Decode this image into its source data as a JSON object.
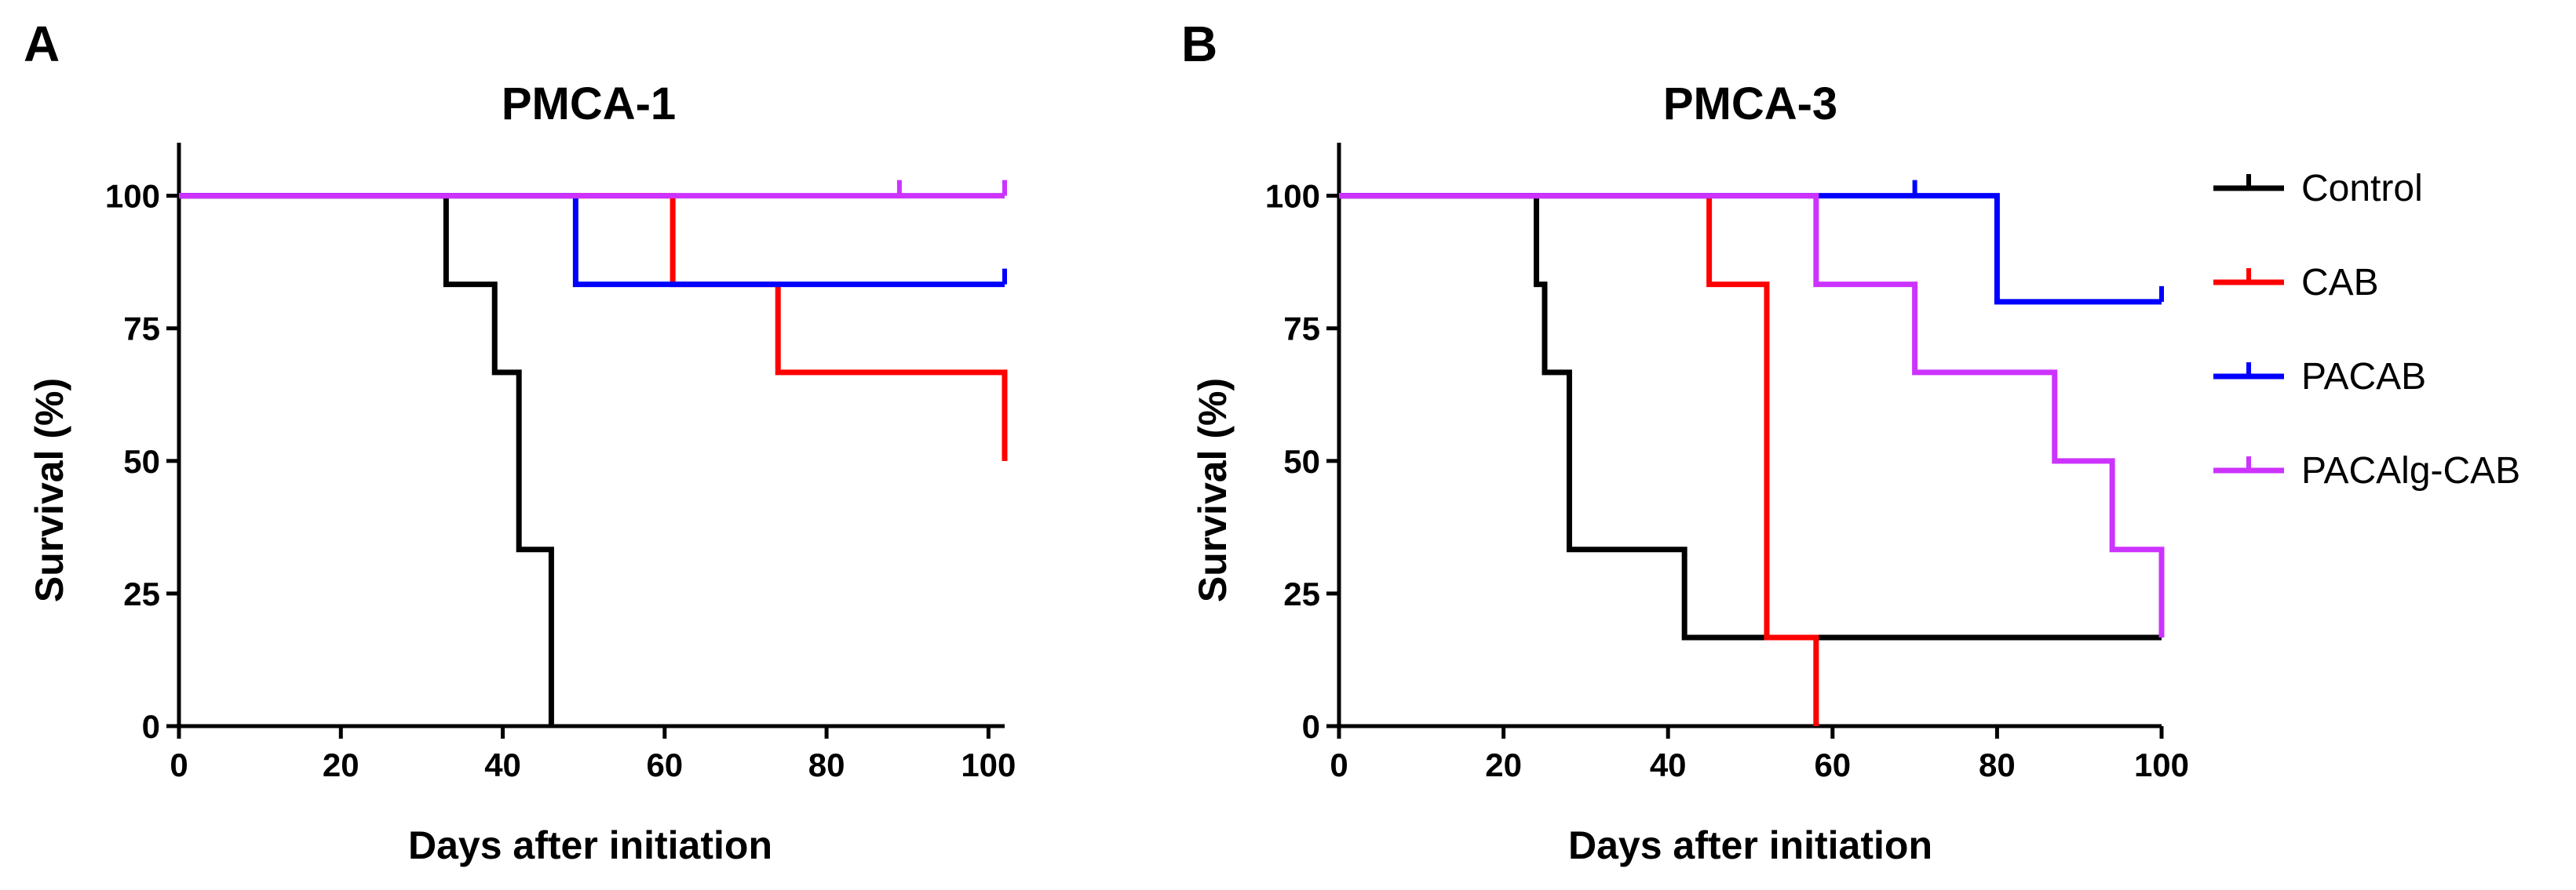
{
  "chart_data": [
    {
      "type": "line",
      "subtype": "kaplan-meier",
      "panel_label": "A",
      "title": "PMCA-1",
      "xlabel": "Days after initiation",
      "ylabel": "Survival (%)",
      "xlim": [
        0,
        102
      ],
      "ylim": [
        0,
        110
      ],
      "xticks": [
        0,
        20,
        40,
        60,
        80,
        100
      ],
      "yticks": [
        0,
        25,
        50,
        75,
        100
      ],
      "series": [
        {
          "name": "Control",
          "color": "#000000",
          "x": [
            0,
            33,
            39,
            42,
            46
          ],
          "y": [
            100,
            83.3,
            66.7,
            33.3,
            0
          ],
          "end_x": 46,
          "censored": []
        },
        {
          "name": "CAB",
          "color": "#ff0000",
          "x": [
            0,
            61,
            74,
            102
          ],
          "y": [
            100,
            83.3,
            66.7,
            50
          ],
          "end_x": 102,
          "censored": []
        },
        {
          "name": "PACAB",
          "color": "#0000ff",
          "x": [
            0,
            49
          ],
          "y": [
            100,
            83.3
          ],
          "end_x": 102,
          "censored": [
            {
              "x": 102,
              "y": 83.3
            }
          ]
        },
        {
          "name": "PACAlg-CAB",
          "color": "#cc33ff",
          "x": [
            0
          ],
          "y": [
            100
          ],
          "end_x": 102,
          "censored": [
            {
              "x": 89,
              "y": 100
            },
            {
              "x": 102,
              "y": 100
            }
          ]
        }
      ]
    },
    {
      "type": "line",
      "subtype": "kaplan-meier",
      "panel_label": "B",
      "title": "PMCA-3",
      "xlabel": "Days after initiation",
      "ylabel": "Survival (%)",
      "xlim": [
        0,
        100
      ],
      "ylim": [
        0,
        110
      ],
      "xticks": [
        0,
        20,
        40,
        60,
        80,
        100
      ],
      "yticks": [
        0,
        25,
        50,
        75,
        100
      ],
      "legend": [
        "Control",
        "CAB",
        "PACAB",
        "PACAlg-CAB"
      ],
      "series": [
        {
          "name": "Control",
          "color": "#000000",
          "x": [
            0,
            24,
            25,
            28,
            42
          ],
          "y": [
            100,
            83.3,
            66.7,
            33.3,
            16.7
          ],
          "end_x": 100,
          "censored": [
            {
              "x": 100,
              "y": 16.7
            }
          ]
        },
        {
          "name": "CAB",
          "color": "#ff0000",
          "x": [
            0,
            45,
            52,
            58
          ],
          "y": [
            100,
            83.3,
            16.7,
            0
          ],
          "end_x": 58,
          "censored": []
        },
        {
          "name": "PACAB",
          "color": "#0000ff",
          "x": [
            0,
            80
          ],
          "y": [
            100,
            80
          ],
          "end_x": 100,
          "censored": [
            {
              "x": 70,
              "y": 100
            },
            {
              "x": 100,
              "y": 80
            }
          ]
        },
        {
          "name": "PACAlg-CAB",
          "color": "#cc33ff",
          "x": [
            0,
            58,
            70,
            87,
            94,
            100
          ],
          "y": [
            100,
            83.3,
            66.7,
            50,
            33.3,
            16.7
          ],
          "end_x": 100,
          "censored": []
        }
      ]
    }
  ]
}
